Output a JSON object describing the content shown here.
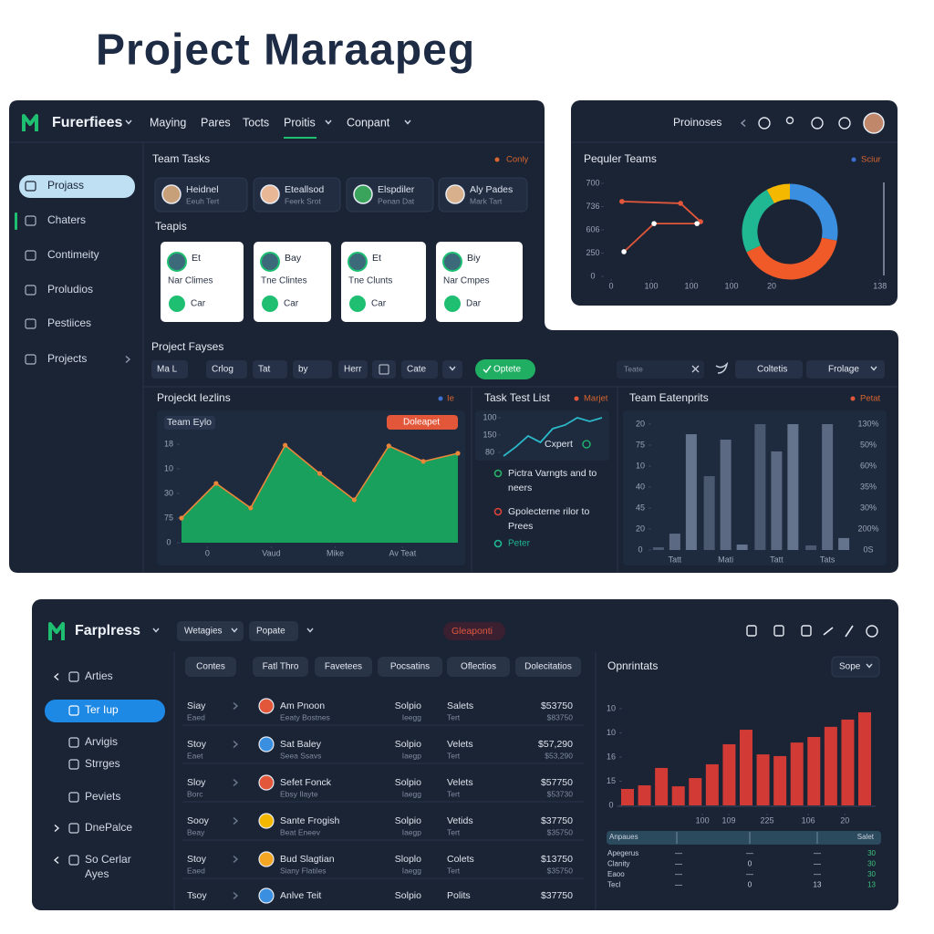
{
  "header": {
    "title": "Project Maraapeg"
  },
  "main": {
    "brand": "Furerfiees",
    "nav": [
      "Maying",
      "Pares",
      "Tocts",
      "Proitis",
      "Conpant"
    ],
    "sidebar": [
      "Projass",
      "Chaters",
      "Contimeity",
      "Proludios",
      "Pestiices",
      "Projects"
    ],
    "team_tasks": {
      "title": "Team Tasks",
      "action": "Conly",
      "members": [
        {
          "name": "Heidnel",
          "role": "Eeuh Tert"
        },
        {
          "name": "Eteallsod",
          "role": "Feerk Srot"
        },
        {
          "name": "Elspdiler",
          "role": "Penan Dat"
        },
        {
          "name": "Aly Pades",
          "role": "Mark Tart"
        }
      ]
    },
    "topics": {
      "title": "Teapis",
      "cards": [
        {
          "name": "Et",
          "title": "Nar Climes",
          "tag": "Car"
        },
        {
          "name": "Bay",
          "title": "Tne Clintes",
          "tag": "Car"
        },
        {
          "name": "Et",
          "title": "Tne Clunts",
          "tag": "Car"
        },
        {
          "name": "Biy",
          "title": "Nar Cmpes",
          "tag": "Dar"
        }
      ]
    },
    "toolbar": {
      "title": "Project Fayses",
      "filters": [
        "Ma L",
        "Crlog",
        "Tat",
        "by",
        "Herr",
        "Cate"
      ],
      "button": "Optete",
      "search": "Teate",
      "actions": [
        "Coltetis",
        "Frolage"
      ]
    },
    "features_chart": {
      "type": "area",
      "title": "Projeckt Iezlins",
      "legend": "Ie",
      "label": "Team Eylo",
      "badge": "Doleapet",
      "x": [
        0,
        1,
        2,
        3,
        4,
        5,
        6,
        7,
        8
      ],
      "values": [
        1.0,
        2.41,
        1.41,
        3.96,
        2.81,
        1.74,
        3.93,
        3.3,
        3.63
      ],
      "color": "#19a05d",
      "line_color": "#e8863a",
      "xlim": [
        0,
        8
      ],
      "xticks": [
        {
          "value": 0.75,
          "label": "0"
        },
        {
          "value": 2.6,
          "label": "Vaud"
        },
        {
          "value": 4.45,
          "label": "Mike"
        },
        {
          "value": 6.4,
          "label": "Av Teat"
        }
      ],
      "ylim": [
        0,
        4.8
      ],
      "yticks": [
        {
          "value": 4,
          "label": "18"
        },
        {
          "value": 3,
          "label": "10"
        },
        {
          "value": 2,
          "label": "30"
        },
        {
          "value": 1,
          "label": "75"
        },
        0
      ]
    },
    "task_list": {
      "title": "Task Test List",
      "legend": "Marjet",
      "chart": {
        "type": "line",
        "label": "Cxpert",
        "color": "#2bb8c8",
        "values": [
          0.79,
          1.32,
          1.95,
          1.58,
          2.37,
          2.58,
          3.0,
          2.79,
          3.0
        ],
        "ylim": [
          1,
          3
        ],
        "yticks": [
          {
            "value": 3,
            "label": "100"
          },
          {
            "value": 2,
            "label": "150"
          },
          {
            "value": 1,
            "label": "80"
          }
        ]
      },
      "items": [
        {
          "lines": [
            "Pictra Varngts and to",
            "neers"
          ],
          "color": "#27b36a"
        },
        {
          "lines": [
            "Gpolecterne rilor  to",
            "Prees"
          ],
          "color": "#d9453a"
        },
        {
          "lines": [
            "Peter"
          ],
          "color": "#1fb892"
        }
      ]
    },
    "enterprise_chart": {
      "type": "bar",
      "title": "Team Eatenprits",
      "legend": "Petat",
      "categories": [
        "Tatt",
        "Mati",
        "Tatt",
        "Tats"
      ],
      "series": [
        {
          "color": "#4b5970",
          "values": [
            0.13,
            3.52,
            6.0,
            0.22
          ]
        },
        {
          "color": "#5b6a82",
          "values": [
            0.78,
            5.26,
            4.7,
            6.0
          ]
        },
        {
          "color": "#64748c",
          "values": [
            5.52,
            0.26,
            6.0,
            0.57
          ]
        }
      ],
      "ylim": [
        0,
        6.2
      ],
      "yticks": [
        {
          "value": 6,
          "label": "20"
        },
        {
          "value": 5,
          "label": "75"
        },
        {
          "value": 4,
          "label": "10"
        },
        {
          "value": 3,
          "label": "40"
        },
        {
          "value": 2,
          "label": "45"
        },
        {
          "value": 1,
          "label": "20"
        },
        0
      ],
      "right_labels": [
        "130%",
        "50%",
        "60%",
        "35%",
        "30%",
        "200%",
        "0S"
      ]
    }
  },
  "teams": {
    "title": "Proinoses",
    "chart_title": "Pequler Teams",
    "action": "Sciur",
    "line_chart": {
      "type": "line",
      "series": [
        {
          "color": "#e2573a",
          "marker_color": "#e2573a",
          "x": [
            0.27,
            1.73,
            2.23
          ],
          "values": [
            3.22,
            3.14,
            2.35
          ]
        },
        {
          "color": "#e2573a",
          "marker_color": "#ffffff",
          "x": [
            0.32,
            1.07,
            2.14
          ],
          "values": [
            1.06,
            2.27,
            2.27
          ]
        }
      ],
      "xlim": [
        0,
        6.7
      ],
      "xticks": [
        0,
        {
          "value": 1,
          "label": "100"
        },
        {
          "value": 2,
          "label": "100"
        },
        {
          "value": 3,
          "label": "100"
        },
        {
          "value": 4,
          "label": "20"
        },
        {
          "value": 6.7,
          "label": "138"
        }
      ],
      "ylim": [
        0,
        4.2
      ],
      "yticks": [
        {
          "value": 4,
          "label": "700"
        },
        {
          "value": 3,
          "label": "736"
        },
        {
          "value": 2,
          "label": "606"
        },
        {
          "value": 1,
          "label": "250"
        },
        0
      ]
    },
    "donut": {
      "type": "donut",
      "values": [
        28,
        40,
        24,
        8
      ],
      "colors": [
        "#3b8fe0",
        "#f05a28",
        "#1fb892",
        "#f5b800"
      ]
    }
  },
  "bottom": {
    "brand": "Farplress",
    "dropdowns": [
      "Wetagies",
      "Popate"
    ],
    "badge": "Gleaponti",
    "sidebar": [
      [
        "Arties"
      ],
      [
        "Ter Iup"
      ],
      [
        "Arvigis"
      ],
      [
        "Strrges"
      ],
      [
        "Peviets"
      ],
      [
        "DnePalce"
      ],
      [
        "So Cerlar",
        "Ayes"
      ]
    ],
    "tabs": [
      "Contes",
      "Fatl Thro",
      "Favetees",
      "Pocsatins",
      "Oflectios",
      "Dolecitatios"
    ],
    "rows": [
      [
        [
          "Siay",
          "Eaed"
        ],
        [
          "Am Pnoon",
          "Eeaty Bostnes"
        ],
        [
          "Solpio",
          "Ieegg"
        ],
        [
          "Salets",
          "Tert"
        ],
        [
          "$53750",
          "$83750"
        ]
      ],
      [
        [
          "Stoy",
          "Eaet"
        ],
        [
          "Sat Baley",
          "Seea Ssavs"
        ],
        [
          "Solpio",
          "Iaegp"
        ],
        [
          "Velets",
          "Tert"
        ],
        [
          "$57,290",
          "$53,290"
        ]
      ],
      [
        [
          "Sloy",
          "Borc"
        ],
        [
          "Sefet Fonck",
          "Ebsy Ilayte"
        ],
        [
          "Solpio",
          "Iaegg"
        ],
        [
          "Velets",
          "Tert"
        ],
        [
          "$57750",
          "$53730"
        ]
      ],
      [
        [
          "Sooy",
          "Beay"
        ],
        [
          "Sante Frogish",
          "Beat Eneev"
        ],
        [
          "Solpio",
          "Iaegp"
        ],
        [
          "Vetids",
          "Tert"
        ],
        [
          "$37750",
          "$35750"
        ]
      ],
      [
        [
          "Stoy",
          "Eaed"
        ],
        [
          "Bud Slagtian",
          "Siany Flatiles"
        ],
        [
          "Sloplo",
          "Iaegg"
        ],
        [
          "Colets",
          "Tert"
        ],
        [
          "$13750",
          "$35750"
        ]
      ],
      [
        [
          "Tsoy"
        ],
        [
          "Anlve Teit"
        ],
        [
          "Solpio"
        ],
        [
          "Polits"
        ],
        [
          "$37750"
        ]
      ]
    ],
    "chart_title": "Opnrintats",
    "chart_filter": "Sope",
    "bar_chart": {
      "type": "bar",
      "color": "#d23a35",
      "values": [
        0.68,
        0.83,
        1.55,
        0.79,
        1.13,
        1.7,
        2.53,
        3.13,
        2.11,
        2.04,
        2.6,
        2.83,
        3.25,
        3.55,
        3.85
      ],
      "xlim": [
        -0.5,
        14.5
      ],
      "xticks": [
        {
          "value": 4.42,
          "label": "100"
        },
        {
          "value": 5.98,
          "label": "109"
        },
        {
          "value": 8.24,
          "label": "225"
        },
        {
          "value": 10.67,
          "label": "106"
        },
        {
          "value": 12.83,
          "label": "20"
        }
      ],
      "ylim": [
        0,
        4.2
      ],
      "yticks": [
        {
          "value": 4,
          "label": "10"
        },
        {
          "value": 3,
          "label": "10"
        },
        {
          "value": 2,
          "label": "16"
        },
        {
          "value": 1,
          "label": "15"
        },
        0
      ]
    },
    "summary": {
      "header": [
        "Anpaues",
        "Salet"
      ],
      "rows": [
        [
          "Apegerus",
          "—",
          "—",
          "—",
          "30"
        ],
        [
          "Clanity",
          "—",
          "0",
          "—",
          "30"
        ],
        [
          "Eaoo",
          "—",
          "—",
          "—",
          "30"
        ],
        [
          "Tecl",
          "—",
          "0",
          "13",
          "13"
        ]
      ]
    }
  }
}
